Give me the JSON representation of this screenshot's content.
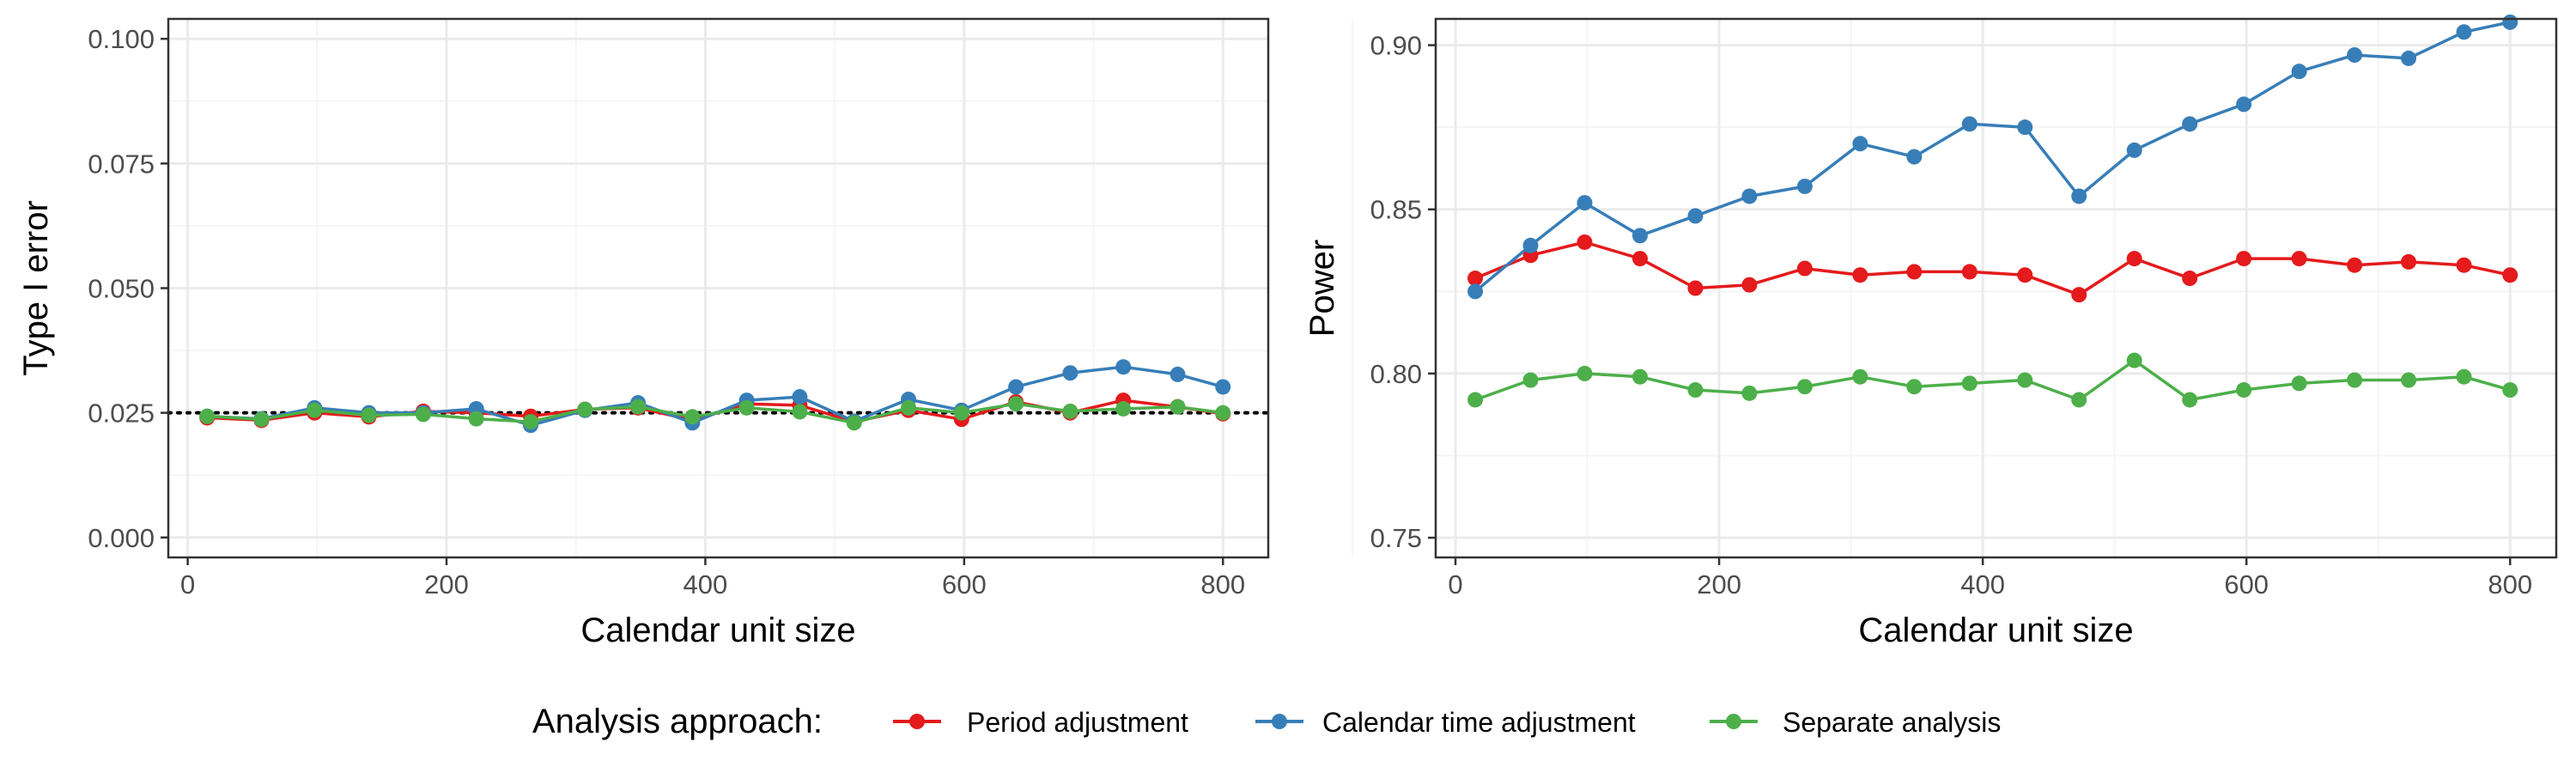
{
  "chart_data": [
    {
      "type": "line",
      "title": "",
      "xlabel": "Calendar unit size",
      "ylabel": "Type I error",
      "xlim": [
        -15,
        835
      ],
      "ylim": [
        -0.004,
        0.104
      ],
      "x_ticks": [
        0,
        200,
        400,
        600,
        800
      ],
      "x_tick_labels": [
        "0",
        "200",
        "400",
        "600",
        "800"
      ],
      "y_ticks": [
        0,
        0.025,
        0.05,
        0.075,
        0.1
      ],
      "y_tick_labels": [
        "0.000",
        "0.025",
        "0.050",
        "0.075",
        "0.100"
      ],
      "grid": true,
      "reference_line": {
        "y": 0.025,
        "style": "dotted"
      },
      "x": [
        15,
        57,
        98,
        140,
        182,
        223,
        265,
        307,
        348,
        390,
        432,
        473,
        515,
        557,
        598,
        640,
        682,
        723,
        765,
        800
      ],
      "series": [
        {
          "name": "Period adjustment",
          "values": [
            0.024,
            0.0235,
            0.025,
            0.0242,
            0.0253,
            0.025,
            0.0243,
            0.0257,
            0.026,
            0.0235,
            0.0268,
            0.0265,
            0.0232,
            0.0255,
            0.0237,
            0.0272,
            0.025,
            0.0275,
            0.0262,
            0.0248
          ]
        },
        {
          "name": "Calendar time adjustment",
          "values": [
            0.0243,
            0.0238,
            0.026,
            0.025,
            0.025,
            0.0258,
            0.0225,
            0.0255,
            0.027,
            0.023,
            0.0275,
            0.0282,
            0.0233,
            0.0277,
            0.0255,
            0.0302,
            0.033,
            0.0342,
            0.0327,
            0.0302
          ]
        },
        {
          "name": "Separate analysis",
          "values": [
            0.0243,
            0.0237,
            0.0255,
            0.0245,
            0.0247,
            0.0238,
            0.0232,
            0.0257,
            0.0262,
            0.0242,
            0.026,
            0.0252,
            0.023,
            0.026,
            0.025,
            0.0268,
            0.0253,
            0.0258,
            0.0262,
            0.025
          ]
        }
      ]
    },
    {
      "type": "line",
      "title": "",
      "xlabel": "Calendar unit size",
      "ylabel": "Power",
      "xlim": [
        -15,
        835
      ],
      "ylim": [
        0.744,
        0.908
      ],
      "x_ticks": [
        0,
        200,
        400,
        600,
        800
      ],
      "x_tick_labels": [
        "0",
        "200",
        "400",
        "600",
        "800"
      ],
      "y_ticks": [
        0.75,
        0.8,
        0.85,
        0.9
      ],
      "y_tick_labels": [
        "0.75",
        "0.80",
        "0.85",
        "0.90"
      ],
      "grid": true,
      "x": [
        15,
        57,
        98,
        140,
        182,
        223,
        265,
        307,
        348,
        390,
        432,
        473,
        515,
        557,
        598,
        640,
        682,
        723,
        765,
        800
      ],
      "series": [
        {
          "name": "Period adjustment",
          "values": [
            0.829,
            0.836,
            0.84,
            0.835,
            0.826,
            0.827,
            0.832,
            0.83,
            0.831,
            0.831,
            0.83,
            0.824,
            0.835,
            0.829,
            0.835,
            0.835,
            0.833,
            0.834,
            0.833,
            0.83
          ]
        },
        {
          "name": "Calendar time adjustment",
          "values": [
            0.825,
            0.839,
            0.852,
            0.842,
            0.848,
            0.854,
            0.857,
            0.87,
            0.866,
            0.876,
            0.875,
            0.854,
            0.868,
            0.876,
            0.882,
            0.892,
            0.897,
            0.896,
            0.904,
            0.907
          ]
        },
        {
          "name": "Separate analysis",
          "values": [
            0.792,
            0.798,
            0.8,
            0.799,
            0.795,
            0.794,
            0.796,
            0.799,
            0.796,
            0.797,
            0.798,
            0.792,
            0.804,
            0.792,
            0.795,
            0.797,
            0.798,
            0.798,
            0.799,
            0.795
          ]
        }
      ]
    }
  ],
  "legend": {
    "title": "Analysis approach:",
    "position": "bottom",
    "items": [
      {
        "label": "Period adjustment",
        "color": "#E41A1C"
      },
      {
        "label": "Calendar time adjustment",
        "color": "#377EB8"
      },
      {
        "label": "Separate analysis",
        "color": "#4DAF4A"
      }
    ]
  },
  "colors": {
    "panel_border": "#333333",
    "grid_major": "#ebebeb",
    "grid_minor": "#f5f5f5",
    "reference_line": "#000000"
  }
}
